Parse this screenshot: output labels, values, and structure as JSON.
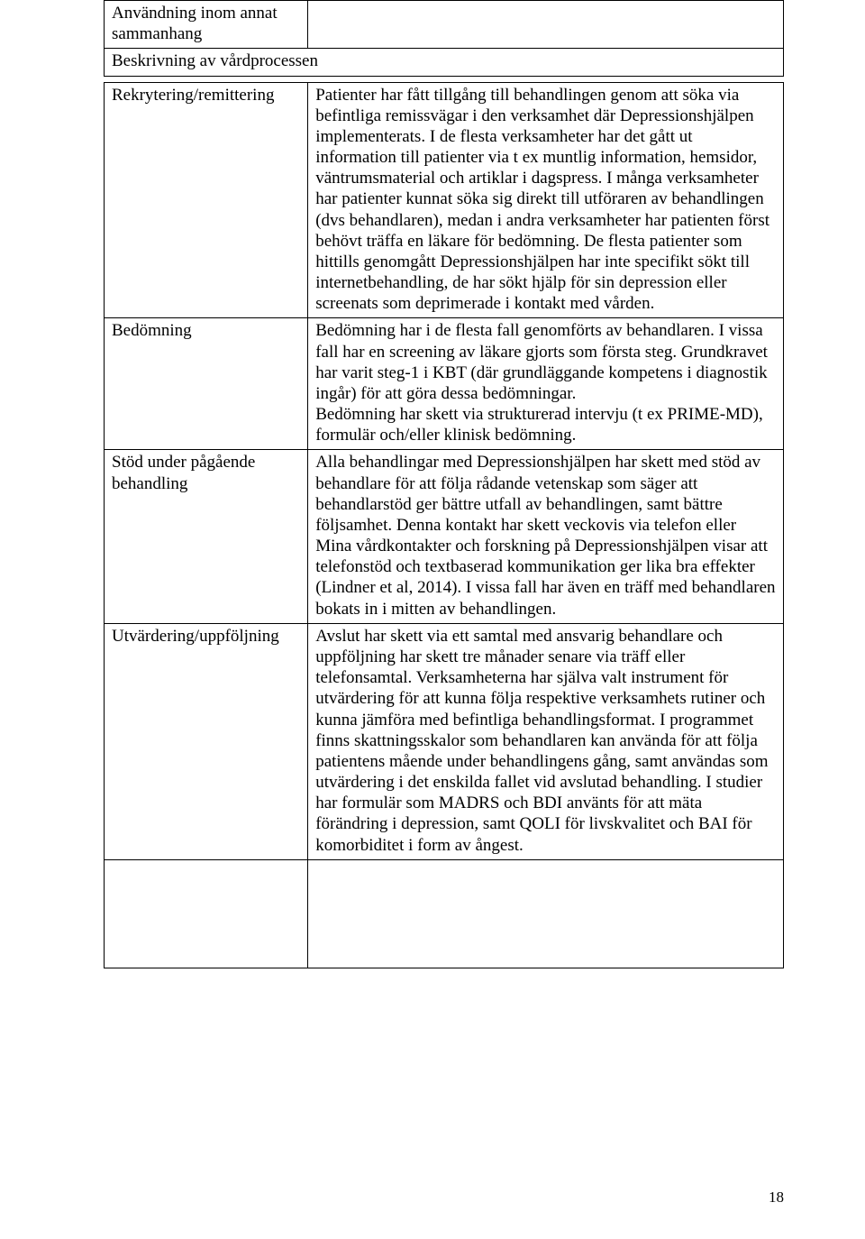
{
  "header_row1": "Användning inom annat sammanhang",
  "header_row2": "Beskrivning av vårdprocessen",
  "rows": [
    {
      "label": "Rekrytering/remittering",
      "text": "Patienter har fått tillgång till behandlingen genom att söka via befintliga remissvägar i den verksamhet där Depressionshjälpen implementerats. I de flesta verksamheter har det gått ut information till patienter via t ex muntlig information, hemsidor, väntrumsmaterial och artiklar i dagspress. I många verksamheter har patienter kunnat söka sig direkt till utföraren av behandlingen (dvs behandlaren), medan i andra verksamheter har patienten först behövt träffa en läkare för bedömning. De flesta patienter som hittills genomgått Depressionshjälpen har inte specifikt sökt till internetbehandling, de har sökt hjälp för sin depression eller screenats som deprimerade i kontakt med vården."
    },
    {
      "label": "Bedömning",
      "text": "Bedömning har i de flesta fall genomförts av behandlaren. I vissa fall har en screening av läkare gjorts som första steg. Grundkravet har varit steg-1 i KBT (där grundläggande kompetens i diagnostik ingår) för att göra dessa bedömningar.\nBedömning har skett via strukturerad intervju (t ex PRIME-MD), formulär och/eller klinisk bedömning."
    },
    {
      "label": "Stöd under pågående behandling",
      "text": "Alla behandlingar med Depressionshjälpen har skett med stöd av behandlare för att följa rådande vetenskap som säger att behandlarstöd ger bättre utfall av behandlingen, samt bättre följsamhet. Denna kontakt har skett veckovis via telefon eller Mina vårdkontakter och forskning på Depressionshjälpen visar att telefonstöd och textbaserad kommunikation ger lika bra effekter (Lindner et al, 2014). I vissa fall har även en träff med behandlaren bokats in i mitten av behandlingen."
    },
    {
      "label": "Utvärdering/uppföljning",
      "text": "Avslut har skett via ett samtal med ansvarig behandlare och uppföljning har skett tre månader senare via träff eller telefonsamtal. Verksamheterna har själva valt instrument för utvärdering för att kunna följa respektive verksamhets rutiner och kunna jämföra med befintliga behandlingsformat. I programmet finns skattningsskalor som behandlaren kan använda för att följa patientens mående under behandlingens gång, samt användas som utvärdering i det enskilda fallet vid avslutad behandling. I studier har formulär som MADRS och BDI använts för att mäta förändring i depression, samt QOLI för livskvalitet och BAI för komorbiditet i form av ångest."
    }
  ],
  "page_number": "18"
}
